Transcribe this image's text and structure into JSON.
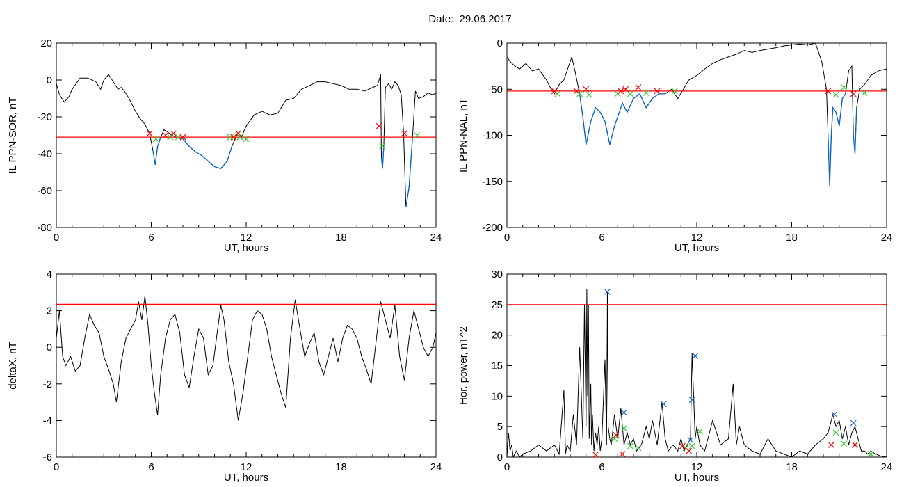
{
  "figure": {
    "title": "Date:  29.06.2017"
  },
  "colors": {
    "line": "#000000",
    "threshold": "#ff0000",
    "segment": "#0066cc",
    "cross_red": "#ff0000",
    "cross_green": "#33cc33",
    "cross_blue": "#1a66cc"
  },
  "chart_data": [
    {
      "type": "line",
      "xlabel": "UT, hours",
      "ylabel": "IL PPN-SOR, nT",
      "xlim": [
        0,
        24
      ],
      "ylim": [
        -80,
        20
      ],
      "xticks": [
        "0",
        "6",
        "12",
        "18",
        "24"
      ],
      "yticks": [
        "20",
        "0",
        "-20",
        "-40",
        "-60",
        "-80"
      ],
      "threshold": -31,
      "series": [
        {
          "x": [
            0,
            0.2,
            0.5,
            0.8,
            1.0,
            1.5,
            2.0,
            2.5,
            2.8,
            3.0,
            3.3,
            3.6,
            3.9,
            4.1,
            4.3,
            4.6,
            5.0,
            5.3,
            5.6,
            5.9,
            6.1,
            6.25,
            6.4,
            6.6,
            6.8,
            7.0,
            7.3,
            7.6,
            8.0,
            8.4,
            8.8,
            9.2,
            9.6,
            10.0,
            10.4,
            10.8,
            11.1,
            11.4,
            11.7,
            12.0,
            12.5,
            13.0,
            13.5,
            14.0,
            14.5,
            15.0,
            15.5,
            16.0,
            16.5,
            17.0,
            17.5,
            18.0,
            18.5,
            19.0,
            19.5,
            20.0,
            20.3,
            20.5,
            20.55,
            20.62,
            20.7,
            20.8,
            21.0,
            21.2,
            21.4,
            21.6,
            21.8,
            21.95,
            22.1,
            22.3,
            22.5,
            22.7,
            22.9,
            23.2,
            23.5,
            23.8,
            24.0
          ],
          "y": [
            -2,
            -8,
            -12,
            -9,
            -5,
            1,
            1,
            -1,
            -5,
            0,
            3,
            -1,
            -5,
            -4,
            -6,
            -10,
            -17,
            -21,
            -24,
            -29,
            -38,
            -46,
            -36,
            -31,
            -27,
            -28,
            -30,
            -31,
            -32,
            -36,
            -39,
            -41,
            -44,
            -47,
            -48,
            -44,
            -36,
            -30,
            -31,
            -25,
            -19,
            -17,
            -19,
            -18,
            -11,
            -10,
            -5,
            -3,
            -1,
            -1,
            -2,
            -3,
            -5,
            -5,
            -6,
            -4,
            -3,
            3,
            -42,
            -48,
            -36,
            -4,
            -2,
            -5,
            -1,
            -3,
            -8,
            -29,
            -69,
            -58,
            -33,
            -6,
            -10,
            -9,
            -7,
            -8,
            -7
          ]
        }
      ],
      "crosses_red": [
        [
          5.9,
          -29
        ],
        [
          6.9,
          -30
        ],
        [
          7.4,
          -29
        ],
        [
          8.0,
          -31
        ],
        [
          11.2,
          -31
        ],
        [
          11.5,
          -29
        ],
        [
          20.4,
          -25
        ],
        [
          22.0,
          -29
        ]
      ],
      "crosses_green": [
        [
          6.3,
          -32
        ],
        [
          7.2,
          -31
        ],
        [
          7.7,
          -31
        ],
        [
          11.0,
          -31
        ],
        [
          11.6,
          -31
        ],
        [
          12.0,
          -32
        ],
        [
          20.6,
          -36
        ],
        [
          22.8,
          -30
        ]
      ]
    },
    {
      "type": "line",
      "xlabel": "UT, hours",
      "ylabel": "IL PPN-NAL, nT",
      "xlim": [
        0,
        24
      ],
      "ylim": [
        -200,
        0
      ],
      "xticks": [
        "0",
        "6",
        "12",
        "18",
        "24"
      ],
      "yticks": [
        "0",
        "-50",
        "-100",
        "-150",
        "-200"
      ],
      "threshold": -52,
      "series": [
        {
          "x": [
            0,
            0.2,
            0.5,
            0.8,
            1.2,
            1.6,
            2.0,
            2.5,
            2.8,
            3.0,
            3.3,
            3.6,
            3.9,
            4.1,
            4.3,
            4.6,
            4.8,
            5.0,
            5.3,
            5.6,
            5.9,
            6.2,
            6.5,
            6.8,
            7.0,
            7.3,
            7.6,
            8.0,
            8.4,
            8.8,
            9.2,
            9.6,
            10.0,
            10.4,
            10.8,
            11.5,
            12.0,
            12.5,
            13.0,
            13.5,
            14.0,
            14.5,
            15.0,
            15.5,
            16.0,
            17.0,
            17.5,
            18.0,
            18.5,
            19.0,
            19.5,
            19.9,
            20.2,
            20.3,
            20.4,
            20.5,
            20.6,
            20.8,
            21.0,
            21.2,
            21.4,
            21.6,
            21.8,
            21.9,
            22.0,
            22.1,
            22.3,
            22.6,
            23.0,
            23.5,
            24.0
          ],
          "y": [
            -15,
            -20,
            -25,
            -28,
            -22,
            -30,
            -28,
            -40,
            -50,
            -55,
            -45,
            -40,
            -25,
            -15,
            -30,
            -55,
            -80,
            -110,
            -85,
            -70,
            -75,
            -85,
            -110,
            -90,
            -80,
            -65,
            -75,
            -60,
            -55,
            -70,
            -60,
            -55,
            -55,
            -50,
            -60,
            -40,
            -35,
            -28,
            -22,
            -18,
            -15,
            -12,
            -8,
            -10,
            -8,
            -5,
            -3,
            -2,
            -1,
            -2,
            0,
            -20,
            -50,
            -100,
            -155,
            -100,
            -70,
            -75,
            -90,
            -60,
            -55,
            -30,
            -25,
            -100,
            -120,
            -70,
            -50,
            -45,
            -35,
            -30,
            -28
          ]
        }
      ],
      "crosses_red": [
        [
          3.0,
          -52
        ],
        [
          4.4,
          -52
        ],
        [
          5.0,
          -50
        ],
        [
          7.2,
          -52
        ],
        [
          7.5,
          -50
        ],
        [
          8.3,
          -48
        ],
        [
          9.5,
          -52
        ],
        [
          20.3,
          -52
        ],
        [
          21.9,
          -55
        ]
      ],
      "crosses_green": [
        [
          3.2,
          -55
        ],
        [
          4.6,
          -55
        ],
        [
          5.2,
          -56
        ],
        [
          7.0,
          -55
        ],
        [
          7.8,
          -55
        ],
        [
          8.8,
          -54
        ],
        [
          10.6,
          -52
        ],
        [
          20.8,
          -56
        ],
        [
          21.3,
          -48
        ],
        [
          22.6,
          -54
        ]
      ]
    },
    {
      "type": "line",
      "xlabel": "UT, hours",
      "ylabel": "deltaX, nT",
      "xlim": [
        0,
        24
      ],
      "ylim": [
        -6,
        4
      ],
      "xticks": [
        "0",
        "6",
        "12",
        "18",
        "24"
      ],
      "yticks": [
        "4",
        "2",
        "0",
        "-2",
        "-4",
        "-6"
      ],
      "threshold": 2.35,
      "series": [
        {
          "x": [
            0,
            0.2,
            0.4,
            0.6,
            0.9,
            1.2,
            1.5,
            1.8,
            2.1,
            2.4,
            2.7,
            3.0,
            3.3,
            3.6,
            3.8,
            4.1,
            4.4,
            4.7,
            5.0,
            5.2,
            5.4,
            5.6,
            5.8,
            6.0,
            6.2,
            6.4,
            6.6,
            6.9,
            7.2,
            7.5,
            7.8,
            8.1,
            8.4,
            8.7,
            9.0,
            9.3,
            9.6,
            9.9,
            10.2,
            10.4,
            10.6,
            10.9,
            11.2,
            11.5,
            11.8,
            12.1,
            12.4,
            12.7,
            13.0,
            13.3,
            13.6,
            13.9,
            14.2,
            14.5,
            14.8,
            15.1,
            15.4,
            15.7,
            16.0,
            16.3,
            16.6,
            16.9,
            17.2,
            17.5,
            17.8,
            18.1,
            18.4,
            18.7,
            19.0,
            19.3,
            19.6,
            19.9,
            20.2,
            20.5,
            20.8,
            21.1,
            21.4,
            21.7,
            22.0,
            22.3,
            22.6,
            22.9,
            23.2,
            23.5,
            23.8,
            24.0
          ],
          "y": [
            0.5,
            2.0,
            -0.5,
            -1.0,
            -0.5,
            -1.3,
            -1.0,
            0.5,
            1.8,
            1.2,
            0.8,
            -0.5,
            -1.2,
            -2.0,
            -3.0,
            -0.8,
            0.5,
            1.0,
            1.5,
            2.5,
            1.5,
            2.8,
            1.2,
            -1.0,
            -2.5,
            -3.7,
            -1.5,
            0.5,
            1.5,
            1.8,
            0.8,
            -1.5,
            -2.2,
            -0.5,
            1.0,
            0.5,
            -1.5,
            -1.0,
            1.0,
            2.3,
            1.5,
            -0.8,
            -2.0,
            -4.0,
            -2.5,
            -0.5,
            1.5,
            2.0,
            1.8,
            1.0,
            -0.5,
            -1.5,
            -2.5,
            -3.3,
            0.5,
            2.6,
            1.0,
            -0.5,
            0.2,
            0.8,
            -0.8,
            -1.5,
            -0.5,
            0.5,
            -0.8,
            0.5,
            1.2,
            1.0,
            0.5,
            -0.5,
            -1.2,
            -2.0,
            0.2,
            2.5,
            1.5,
            0.5,
            2.3,
            -0.5,
            -1.8,
            0.5,
            2.0,
            1.0,
            0.0,
            -0.5,
            0.0,
            0.8
          ]
        }
      ]
    },
    {
      "type": "line",
      "xlabel": "UT, hours",
      "ylabel": "Hor. power, nT^2",
      "xlim": [
        0,
        24
      ],
      "ylim": [
        0,
        30
      ],
      "xticks": [
        "0",
        "6",
        "12",
        "18",
        "24"
      ],
      "yticks": [
        "30",
        "25",
        "20",
        "15",
        "10",
        "5",
        "0"
      ],
      "threshold": 25,
      "series": [
        {
          "x": [
            0,
            0.1,
            0.2,
            0.3,
            0.4,
            0.6,
            0.8,
            1.0,
            1.5,
            2.0,
            2.5,
            3.0,
            3.3,
            3.6,
            3.7,
            3.8,
            4.0,
            4.2,
            4.4,
            4.6,
            4.8,
            4.9,
            5.0,
            5.05,
            5.1,
            5.15,
            5.2,
            5.3,
            5.35,
            5.4,
            5.5,
            5.6,
            5.7,
            5.8,
            5.9,
            6.0,
            6.2,
            6.3,
            6.35,
            6.4,
            6.5,
            6.6,
            6.8,
            7.0,
            7.2,
            7.4,
            7.6,
            7.8,
            8.0,
            8.2,
            8.5,
            8.8,
            9.0,
            9.2,
            9.5,
            9.8,
            10.0,
            10.2,
            10.5,
            10.8,
            11.0,
            11.2,
            11.4,
            11.6,
            11.7,
            11.8,
            11.9,
            12.0,
            12.2,
            12.5,
            13.0,
            13.5,
            14.0,
            14.3,
            14.5,
            14.7,
            15.0,
            15.5,
            16.0,
            16.5,
            17.0,
            17.5,
            18.0,
            18.5,
            19.0,
            19.5,
            20.0,
            20.3,
            20.6,
            20.8,
            21.0,
            21.2,
            21.4,
            21.6,
            21.8,
            22.0,
            22.2,
            22.4,
            22.6,
            22.8,
            23.0,
            23.3,
            23.6,
            24.0
          ],
          "y": [
            0,
            4,
            1,
            2,
            0,
            1,
            0,
            0.5,
            1,
            2,
            1,
            2,
            0.5,
            11,
            0.5,
            2,
            1,
            7,
            2,
            18,
            3,
            25,
            5,
            27.5,
            10,
            25,
            3,
            12,
            2,
            7,
            1,
            4,
            2,
            5,
            1,
            3,
            16,
            2,
            27,
            5,
            3,
            2,
            7,
            3,
            8,
            2,
            4,
            2,
            3,
            1,
            2,
            5,
            3,
            6,
            2,
            9,
            3,
            1,
            2,
            1,
            3,
            1,
            2,
            3,
            17,
            10,
            3,
            5,
            2,
            1,
            6,
            2,
            3,
            12,
            2,
            5,
            2,
            1,
            0.5,
            3,
            1,
            0.5,
            0,
            1,
            0.5,
            2,
            3,
            4,
            7,
            5,
            6,
            3,
            5,
            2,
            4,
            5,
            3,
            1,
            1,
            0.5,
            1,
            0.5,
            0.2,
            0
          ]
        }
      ],
      "crosses_blue": [
        [
          6.35,
          27.1
        ],
        [
          7.4,
          7.3
        ],
        [
          9.9,
          8.7
        ],
        [
          11.6,
          2.8
        ],
        [
          11.7,
          9.4
        ],
        [
          11.9,
          16.6
        ],
        [
          20.7,
          7.0
        ],
        [
          21.9,
          5.6
        ]
      ],
      "crosses_green": [
        [
          6.8,
          3.0
        ],
        [
          7.4,
          4.7
        ],
        [
          7.8,
          1.8
        ],
        [
          8.3,
          1.5
        ],
        [
          11.3,
          1.5
        ],
        [
          11.7,
          1.8
        ],
        [
          12.2,
          4.2
        ],
        [
          20.8,
          4.0
        ],
        [
          21.3,
          2.2
        ],
        [
          23.0,
          0.5
        ]
      ],
      "crosses_red": [
        [
          5.6,
          0.4
        ],
        [
          6.9,
          3.6
        ],
        [
          7.3,
          0.5
        ],
        [
          11.1,
          1.8
        ],
        [
          11.5,
          1.0
        ],
        [
          20.5,
          2.0
        ],
        [
          22.0,
          2.0
        ]
      ]
    }
  ]
}
